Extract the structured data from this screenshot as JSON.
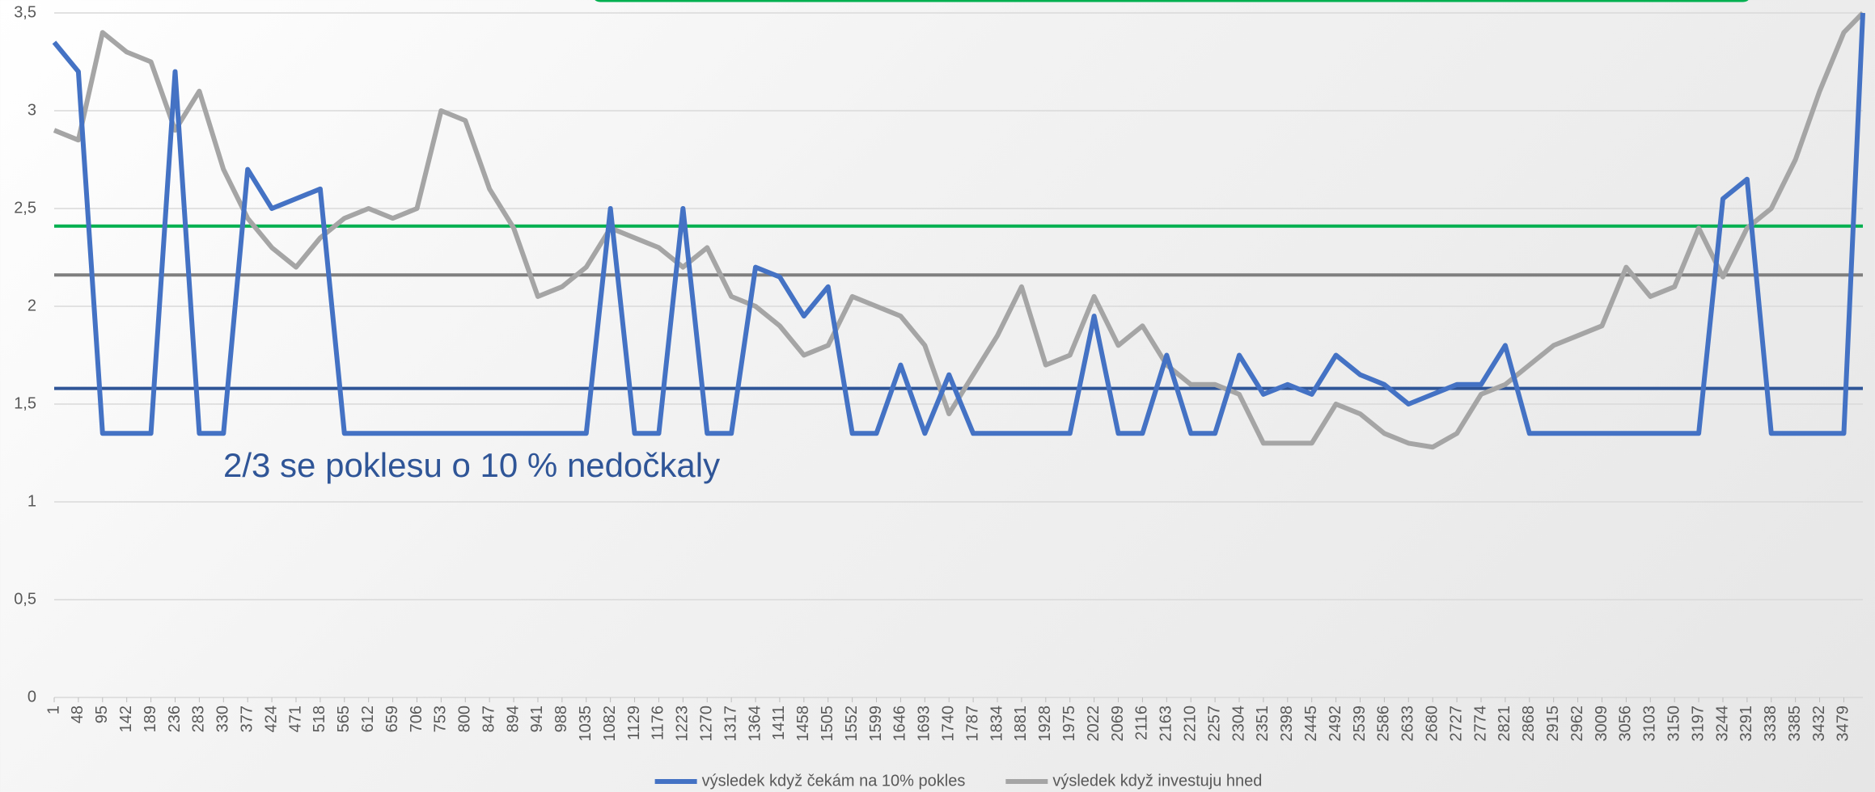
{
  "chart_data": {
    "type": "line",
    "annotation": "2/3 se poklesu o 10 % nedočkaly",
    "x": [
      1,
      48,
      95,
      142,
      189,
      236,
      283,
      330,
      377,
      424,
      471,
      518,
      565,
      612,
      659,
      706,
      753,
      800,
      847,
      894,
      941,
      988,
      1035,
      1082,
      1129,
      1176,
      1223,
      1270,
      1317,
      1364,
      1411,
      1458,
      1505,
      1552,
      1599,
      1646,
      1693,
      1740,
      1787,
      1834,
      1881,
      1928,
      1975,
      2022,
      2069,
      2116,
      2163,
      2210,
      2257,
      2304,
      2351,
      2398,
      2445,
      2492,
      2539,
      2586,
      2633,
      2680,
      2727,
      2774,
      2821,
      2868,
      2915,
      2962,
      3009,
      3056,
      3103,
      3150,
      3197,
      3244,
      3291,
      3338,
      3385,
      3432,
      3479,
      3516
    ],
    "series": [
      {
        "name": "výsledek když čekám na 10% pokles",
        "color": "#4472c4",
        "values": [
          3.35,
          3.2,
          1.35,
          1.35,
          1.35,
          3.2,
          1.35,
          1.35,
          2.7,
          2.5,
          2.55,
          2.6,
          1.35,
          1.35,
          1.35,
          1.35,
          1.35,
          1.35,
          1.35,
          1.35,
          1.35,
          1.35,
          1.35,
          2.5,
          1.35,
          1.35,
          2.5,
          1.35,
          1.35,
          2.2,
          2.15,
          1.95,
          2.1,
          1.35,
          1.35,
          1.7,
          1.35,
          1.65,
          1.35,
          1.35,
          1.35,
          1.35,
          1.35,
          1.95,
          1.35,
          1.35,
          1.75,
          1.35,
          1.35,
          1.75,
          1.55,
          1.6,
          1.55,
          1.75,
          1.65,
          1.6,
          1.5,
          1.55,
          1.6,
          1.6,
          1.8,
          1.35,
          1.35,
          1.35,
          1.35,
          1.35,
          1.35,
          1.35,
          1.35,
          2.55,
          2.65,
          1.35,
          1.35,
          1.35,
          1.35,
          3.5
        ]
      },
      {
        "name": "výsledek když investuju hned",
        "color": "#a5a5a5",
        "values": [
          2.9,
          2.85,
          3.4,
          3.3,
          3.25,
          2.9,
          3.1,
          2.7,
          2.45,
          2.3,
          2.2,
          2.35,
          2.45,
          2.5,
          2.45,
          2.5,
          3.0,
          2.95,
          2.6,
          2.4,
          2.05,
          2.1,
          2.2,
          2.4,
          2.35,
          2.3,
          2.2,
          2.3,
          2.05,
          2.0,
          1.9,
          1.75,
          1.8,
          2.05,
          2.0,
          1.95,
          1.8,
          1.45,
          1.65,
          1.85,
          2.1,
          1.7,
          1.75,
          2.05,
          1.8,
          1.9,
          1.7,
          1.6,
          1.6,
          1.55,
          1.3,
          1.3,
          1.3,
          1.5,
          1.45,
          1.35,
          1.3,
          1.28,
          1.35,
          1.55,
          1.6,
          1.7,
          1.8,
          1.85,
          1.9,
          2.2,
          2.05,
          2.1,
          2.4,
          2.15,
          2.4,
          2.5,
          2.75,
          3.1,
          3.4,
          3.5
        ]
      }
    ],
    "reference_lines": [
      {
        "value": 2.41,
        "color": "#00b050"
      },
      {
        "value": 2.16,
        "color": "#7f7f7f"
      },
      {
        "value": 1.58,
        "color": "#2f5597"
      }
    ],
    "xlim": [
      1,
      3516
    ],
    "xticks": [
      1,
      48,
      95,
      142,
      189,
      236,
      283,
      330,
      377,
      424,
      471,
      518,
      565,
      612,
      659,
      706,
      753,
      800,
      847,
      894,
      941,
      988,
      1035,
      1082,
      1129,
      1176,
      1223,
      1270,
      1317,
      1364,
      1411,
      1458,
      1505,
      1552,
      1599,
      1646,
      1693,
      1740,
      1787,
      1834,
      1881,
      1928,
      1975,
      2022,
      2069,
      2116,
      2163,
      2210,
      2257,
      2304,
      2351,
      2398,
      2445,
      2492,
      2539,
      2586,
      2633,
      2680,
      2727,
      2774,
      2821,
      2868,
      2915,
      2962,
      3009,
      3056,
      3103,
      3150,
      3197,
      3244,
      3291,
      3338,
      3385,
      3432,
      3479
    ],
    "ylim": [
      0,
      3.5
    ],
    "yticks": [
      0,
      {
        "value": 0.5,
        "label": "0,5"
      },
      1,
      {
        "value": 1.5,
        "label": "1,5"
      },
      2,
      {
        "value": 2.5,
        "label": "2,5"
      },
      3,
      {
        "value": 3.5,
        "label": "3,5"
      }
    ],
    "grid": true,
    "legend": "bottom"
  }
}
